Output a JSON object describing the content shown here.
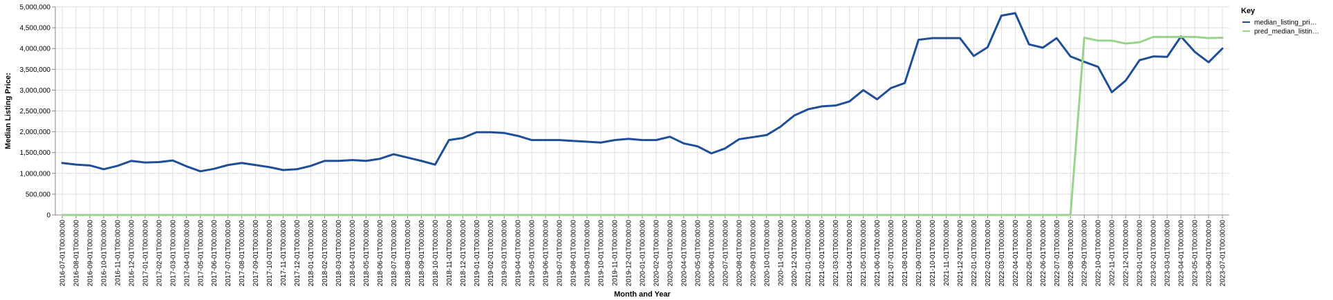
{
  "chart_data": {
    "type": "line",
    "title": "",
    "xlabel": "Month and Year",
    "ylabel": "Median Listing Price:",
    "ylim": [
      0,
      5000000
    ],
    "yticks": [
      "0",
      "500,000",
      "1,000,000",
      "1,500,000",
      "2,000,000",
      "2,500,000",
      "3,000,000",
      "3,500,000",
      "4,000,000",
      "4,500,000",
      "5,000,000"
    ],
    "grid": true,
    "legend": {
      "title": "Key",
      "placement": "right"
    },
    "categories": [
      "2016-07-01T00:00:00",
      "2016-08-01T00:00:00",
      "2016-09-01T00:00:00",
      "2016-10-01T00:00:00",
      "2016-11-01T00:00:00",
      "2016-12-01T00:00:00",
      "2017-01-01T00:00:00",
      "2017-02-01T00:00:00",
      "2017-03-01T00:00:00",
      "2017-04-01T00:00:00",
      "2017-05-01T00:00:00",
      "2017-06-01T00:00:00",
      "2017-07-01T00:00:00",
      "2017-08-01T00:00:00",
      "2017-09-01T00:00:00",
      "2017-10-01T00:00:00",
      "2017-11-01T00:00:00",
      "2017-12-01T00:00:00",
      "2018-01-01T00:00:00",
      "2018-02-01T00:00:00",
      "2018-03-01T00:00:00",
      "2018-04-01T00:00:00",
      "2018-05-01T00:00:00",
      "2018-06-01T00:00:00",
      "2018-07-01T00:00:00",
      "2018-08-01T00:00:00",
      "2018-09-01T00:00:00",
      "2018-10-01T00:00:00",
      "2018-11-01T00:00:00",
      "2018-12-01T00:00:00",
      "2019-01-01T00:00:00",
      "2019-02-01T00:00:00",
      "2019-03-01T00:00:00",
      "2019-04-01T00:00:00",
      "2019-05-01T00:00:00",
      "2019-06-01T00:00:00",
      "2019-07-01T00:00:00",
      "2019-08-01T00:00:00",
      "2019-09-01T00:00:00",
      "2019-10-01T00:00:00",
      "2019-11-01T00:00:00",
      "2019-12-01T00:00:00",
      "2020-01-01T00:00:00",
      "2020-02-01T00:00:00",
      "2020-03-01T00:00:00",
      "2020-04-01T00:00:00",
      "2020-05-01T00:00:00",
      "2020-06-01T00:00:00",
      "2020-07-01T00:00:00",
      "2020-08-01T00:00:00",
      "2020-09-01T00:00:00",
      "2020-10-01T00:00:00",
      "2020-11-01T00:00:00",
      "2020-12-01T00:00:00",
      "2021-01-01T00:00:00",
      "2021-02-01T00:00:00",
      "2021-03-01T00:00:00",
      "2021-04-01T00:00:00",
      "2021-05-01T00:00:00",
      "2021-06-01T00:00:00",
      "2021-07-01T00:00:00",
      "2021-08-01T00:00:00",
      "2021-09-01T00:00:00",
      "2021-10-01T00:00:00",
      "2021-11-01T00:00:00",
      "2021-12-01T00:00:00",
      "2022-01-01T00:00:00",
      "2022-02-01T00:00:00",
      "2022-03-01T00:00:00",
      "2022-04-01T00:00:00",
      "2022-05-01T00:00:00",
      "2022-06-01T00:00:00",
      "2022-07-01T00:00:00",
      "2022-08-01T00:00:00",
      "2022-09-01T00:00:00",
      "2022-10-01T00:00:00",
      "2022-11-01T00:00:00",
      "2022-12-01T00:00:00",
      "2023-01-01T00:00:00",
      "2023-02-01T00:00:00",
      "2023-03-01T00:00:00",
      "2023-04-01T00:00:00",
      "2023-05-01T00:00:00",
      "2023-06-01T00:00:00",
      "2023-07-01T00:00:00"
    ],
    "series": [
      {
        "name": "median_listing_pri…",
        "color": "#1f4e99",
        "values": [
          1250000,
          1210000,
          1190000,
          1100000,
          1180000,
          1300000,
          1260000,
          1270000,
          1310000,
          1170000,
          1050000,
          1110000,
          1200000,
          1250000,
          1200000,
          1150000,
          1080000,
          1100000,
          1180000,
          1300000,
          1300000,
          1320000,
          1300000,
          1350000,
          1460000,
          1380000,
          1300000,
          1210000,
          1800000,
          1850000,
          1990000,
          1990000,
          1970000,
          1900000,
          1800000,
          1800000,
          1800000,
          1780000,
          1760000,
          1740000,
          1800000,
          1830000,
          1800000,
          1800000,
          1880000,
          1720000,
          1650000,
          1480000,
          1600000,
          1820000,
          1870000,
          1920000,
          2120000,
          2390000,
          2540000,
          2610000,
          2630000,
          2730000,
          3000000,
          2780000,
          3050000,
          3170000,
          4210000,
          4250000,
          4250000,
          4250000,
          3820000,
          4030000,
          4790000,
          4850000,
          4100000,
          4020000,
          4250000,
          3810000,
          3680000,
          3560000,
          2950000,
          3230000,
          3720000,
          3810000,
          3800000,
          4290000,
          3920000,
          3670000,
          4000000
        ]
      },
      {
        "name": "pred_median_listin…",
        "color": "#98d48c",
        "values": [
          0,
          0,
          0,
          0,
          0,
          0,
          0,
          0,
          0,
          0,
          0,
          0,
          0,
          0,
          0,
          0,
          0,
          0,
          0,
          0,
          0,
          0,
          0,
          0,
          0,
          0,
          0,
          0,
          0,
          0,
          0,
          0,
          0,
          0,
          0,
          0,
          0,
          0,
          0,
          0,
          0,
          0,
          0,
          0,
          0,
          0,
          0,
          0,
          0,
          0,
          0,
          0,
          0,
          0,
          0,
          0,
          0,
          0,
          0,
          0,
          0,
          0,
          0,
          0,
          0,
          0,
          0,
          0,
          0,
          0,
          0,
          0,
          0,
          0,
          4260000,
          4190000,
          4190000,
          4120000,
          4150000,
          4280000,
          4280000,
          4280000,
          4280000,
          4250000,
          4260000
        ]
      }
    ]
  }
}
